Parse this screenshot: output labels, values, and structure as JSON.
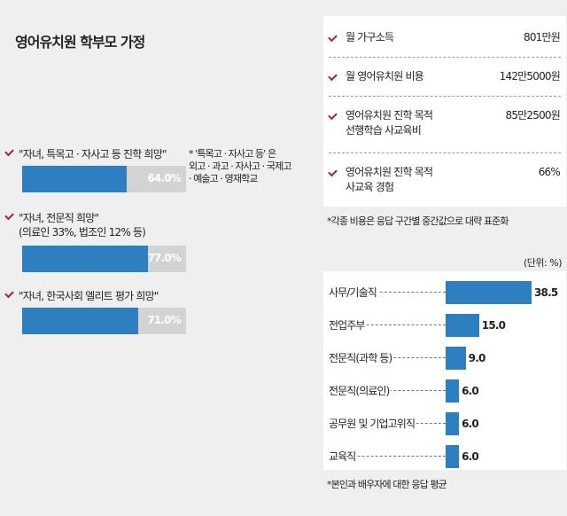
{
  "title": "영어유치원 학부모 가정",
  "aspirations": {
    "items": [
      {
        "label": "\"자녀, 특목고 · 자사고 등 진학 희망\"",
        "value_label": "64.0%",
        "value": 64.0
      },
      {
        "label": "\"자녀, 전문직 희망\"",
        "label2": "(의료인 33%, 법조인 12% 등)",
        "value_label": "77.0%",
        "value": 77.0
      },
      {
        "label": "\"자녀, 한국사회 엘리트 평가 희망\"",
        "value_label": "71.0%",
        "value": 71.0
      }
    ],
    "footnote": [
      "* '특목고 · 자사고 등' 은",
      "외고 · 과고 · 자사고 · 국제고",
      "· 예술고 · 영재학교"
    ]
  },
  "stats": {
    "rows": [
      {
        "label": "월 가구소득",
        "value": "801만원"
      },
      {
        "label": "월 영어유치원 비용",
        "value": "142만5000원"
      },
      {
        "label": "영어유치원 진학 목적",
        "label2": "선행학습 사교육비",
        "value": "85만2500원"
      },
      {
        "label": "영어유치원 진학 목적",
        "label2": "사교육 경험",
        "value": "66%"
      }
    ],
    "note": "*각종 비용은 응답 구간별 중간값으로 대략 표준화"
  },
  "chart_data": {
    "type": "bar",
    "orientation": "horizontal",
    "unit_label": "(단위: %)",
    "categories": [
      "사무/기술직",
      "전업주부",
      "전문직(과학 등)",
      "전문직(의료인)",
      "공무원 및 기업고위직",
      "교육직"
    ],
    "values": [
      38.5,
      15.0,
      9.0,
      6.0,
      6.0,
      6.0
    ],
    "value_labels": [
      "38.5",
      "15.0",
      "9.0",
      "6.0",
      "6.0",
      "6.0"
    ],
    "bar_color": "#2d7fc0",
    "footnote": "*본인과 배우자에 대한 응답 평균"
  },
  "colors": {
    "accent": "#a3243b",
    "bar": "#2d7fc0",
    "bar_track": "#d3d3d3"
  }
}
